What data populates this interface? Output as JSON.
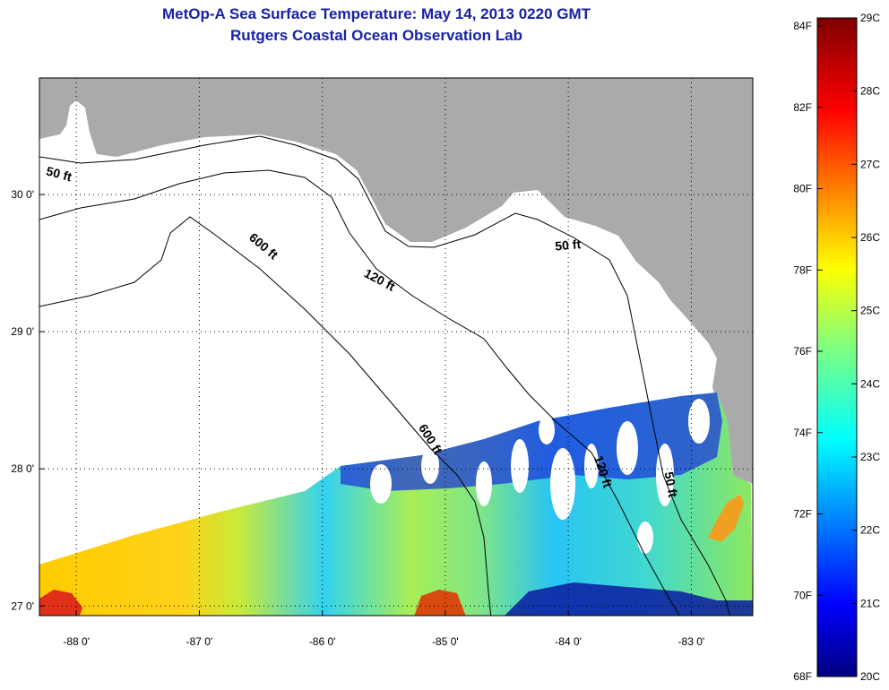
{
  "title": {
    "line1": "MetOp-A Sea Surface Temperature:  May 14, 2013 0220 GMT",
    "line2": "Rutgers Coastal Ocean Observation Lab"
  },
  "map": {
    "lon_range": [
      -88.3,
      -82.5
    ],
    "lat_range": [
      26.93,
      30.85
    ],
    "x_ticks": [
      {
        "value": -88,
        "label": "-88 0'"
      },
      {
        "value": -87,
        "label": "-87 0'"
      },
      {
        "value": -86,
        "label": "-86 0'"
      },
      {
        "value": -85,
        "label": "-85 0'"
      },
      {
        "value": -84,
        "label": "-84 0'"
      },
      {
        "value": -83,
        "label": "-83 0'"
      }
    ],
    "y_ticks": [
      {
        "value": 30,
        "label": "30 0'"
      },
      {
        "value": 29,
        "label": "29 0'"
      },
      {
        "value": 28,
        "label": "28 0'"
      },
      {
        "value": 27,
        "label": "27 0'"
      }
    ],
    "grid": "dotted",
    "land_color": "#aaaaaa",
    "contour_labels": [
      {
        "text": "50 ft",
        "lon": -88.15,
        "lat": 30.12,
        "rotate": 15
      },
      {
        "text": "600 ft",
        "lon": -86.5,
        "lat": 29.6,
        "rotate": 40
      },
      {
        "text": "120 ft",
        "lon": -85.55,
        "lat": 29.35,
        "rotate": 28
      },
      {
        "text": "50 ft",
        "lon": -84.0,
        "lat": 29.6,
        "rotate": -5
      },
      {
        "text": "600 ft",
        "lon": -85.15,
        "lat": 28.2,
        "rotate": 58
      },
      {
        "text": "120 ft",
        "lon": -83.75,
        "lat": 27.97,
        "rotate": 72
      },
      {
        "text": "50 ft",
        "lon": -83.2,
        "lat": 27.88,
        "rotate": 80
      }
    ]
  },
  "colorbar": {
    "fahrenheit": [
      {
        "value": 84,
        "label": "84F"
      },
      {
        "value": 82,
        "label": "82F"
      },
      {
        "value": 80,
        "label": "80F"
      },
      {
        "value": 78,
        "label": "78F"
      },
      {
        "value": 76,
        "label": "76F"
      },
      {
        "value": 74,
        "label": "74F"
      },
      {
        "value": 72,
        "label": "72F"
      },
      {
        "value": 70,
        "label": "70F"
      },
      {
        "value": 68,
        "label": "68F"
      }
    ],
    "celsius": [
      {
        "value": 29,
        "label": "29C"
      },
      {
        "value": 28,
        "label": "28C"
      },
      {
        "value": 27,
        "label": "27C"
      },
      {
        "value": 26,
        "label": "26C"
      },
      {
        "value": 25,
        "label": "25C"
      },
      {
        "value": 24,
        "label": "24C"
      },
      {
        "value": 23,
        "label": "23C"
      },
      {
        "value": 22,
        "label": "22C"
      },
      {
        "value": 21,
        "label": "21C"
      },
      {
        "value": 20,
        "label": "20C"
      }
    ],
    "range_c": [
      20,
      29
    ],
    "colormap": "jet"
  }
}
